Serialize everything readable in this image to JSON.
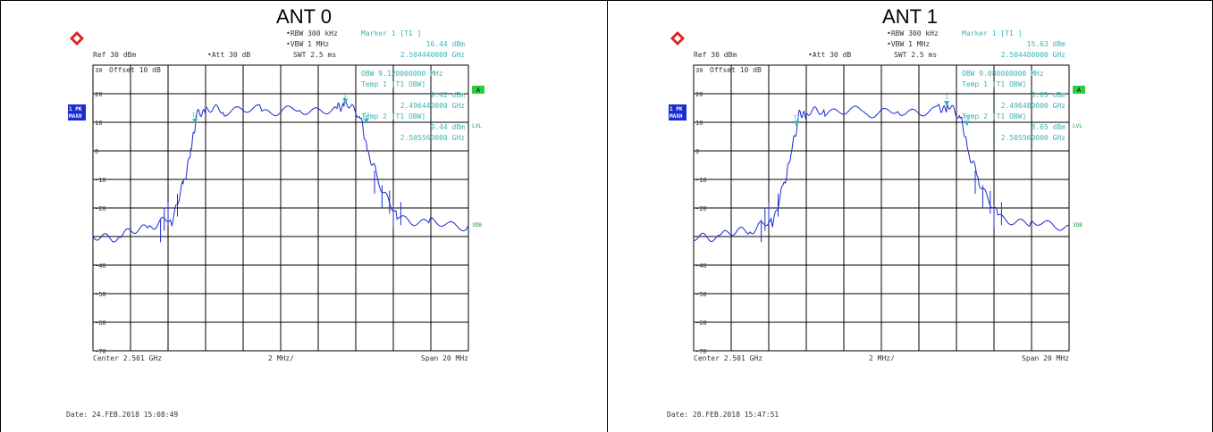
{
  "panels": [
    {
      "header": "ANT 0",
      "ref": "Ref  30 dBm",
      "att": "Att  30 dB",
      "rbw": "RBW 300 kHz",
      "vbw": "VBW 1 MHz",
      "swt": "SWT 2.5 ms",
      "marker_title": "Marker 1 [T1 ]",
      "marker_level": "16.44 dBm",
      "marker_freq": "2.504440000 GHz",
      "offset": "Offset  10 dB",
      "obw": "OBW  9.120000000 MHz",
      "temp1": "Temp 1  [T1 OBW]",
      "temp1_level": "9.42 dBm",
      "temp1_freq": "2.496440000 GHz",
      "temp2": "Temp 2  [T1 OBW]",
      "temp2_level": "9.44 dBm",
      "temp2_freq": "2.505560000 GHz",
      "trace_label_1": "1 PK",
      "trace_label_2": "MAXH",
      "badge_a": "A",
      "lvl": "LVL",
      "three_db": "3DB",
      "center": "Center 2.501 GHz",
      "div": "2 MHz/",
      "span": "Span 20 MHz",
      "date": "Date: 24.FEB.2018  15:08:49"
    },
    {
      "header": "ANT 1",
      "ref": "Ref  30 dBm",
      "att": "Att  30 dB",
      "rbw": "RBW 300 kHz",
      "vbw": "VBW 1 MHz",
      "swt": "SWT 2.5 ms",
      "marker_title": "Marker 1 [T1 ]",
      "marker_level": "15.63 dBm",
      "marker_freq": "2.504480000 GHz",
      "offset": "Offset  10 dB",
      "obw": "OBW  9.080000000 MHz",
      "temp1": "Temp 1  [T1 OBW]",
      "temp1_level": "8.63 dBm",
      "temp1_freq": "2.496480000 GHz",
      "temp2": "Temp 2  [T1 OBW]",
      "temp2_level": "8.65 dBm",
      "temp2_freq": "2.505560000 GHz",
      "trace_label_1": "1 PK",
      "trace_label_2": "MAXH",
      "badge_a": "A",
      "lvl": "LVL",
      "three_db": "3DB",
      "center": "Center 2.501 GHz",
      "div": "2 MHz/",
      "span": "Span 20 MHz",
      "date": "Date: 28.FEB.2018  15:47:51"
    }
  ],
  "chart_data": [
    {
      "type": "line",
      "x_unit": "GHz",
      "y_unit": "dBm",
      "xlim": [
        2.491,
        2.511
      ],
      "ylim": [
        -70,
        30
      ],
      "y_ticks": [
        30,
        20,
        10,
        0,
        -10,
        -20,
        -30,
        -40,
        -50,
        -60,
        -70
      ],
      "y_tick_labels": [
        "30",
        "20",
        "10",
        "0",
        "-10",
        "-20",
        "",
        "-40",
        "-50",
        "-60",
        "-70"
      ],
      "grid": true,
      "series": [
        {
          "x": [
            2.491,
            2.4925,
            2.494,
            2.4952,
            2.4958,
            2.4962,
            2.4965,
            2.497,
            2.498,
            2.5,
            2.502,
            2.504,
            2.5044,
            2.5052,
            2.5056,
            2.5062,
            2.5072,
            2.509,
            2.511
          ],
          "y": [
            -31,
            -30,
            -27,
            -24,
            -12,
            0,
            12,
            14,
            14,
            14,
            14.5,
            15,
            16.44,
            13,
            0,
            -10,
            -23,
            -25,
            -26
          ]
        }
      ],
      "markers": [
        {
          "label": "1",
          "x": 2.50444,
          "y": 16.44
        },
        {
          "label": "T1",
          "x": 2.49644,
          "y": 9.42
        },
        {
          "label": "T2",
          "x": 2.50556,
          "y": 9.44
        }
      ]
    },
    {
      "type": "line",
      "x_unit": "GHz",
      "y_unit": "dBm",
      "xlim": [
        2.491,
        2.511
      ],
      "ylim": [
        -70,
        30
      ],
      "y_ticks": [
        30,
        20,
        10,
        0,
        -10,
        -20,
        -30,
        -40,
        -50,
        -60,
        -70
      ],
      "y_tick_labels": [
        "30",
        "20",
        "10",
        "0",
        "-10",
        "-20",
        "",
        "-40",
        "-50",
        "-60",
        "-70"
      ],
      "grid": true,
      "series": [
        {
          "x": [
            2.491,
            2.4925,
            2.494,
            2.4952,
            2.4958,
            2.4962,
            2.4966,
            2.497,
            2.498,
            2.5,
            2.502,
            2.504,
            2.5045,
            2.5052,
            2.5056,
            2.5062,
            2.5072,
            2.509,
            2.511
          ],
          "y": [
            -31,
            -30,
            -28,
            -25,
            -12,
            0,
            12,
            13,
            13.5,
            13.5,
            14,
            14.5,
            15.63,
            12,
            0,
            -10,
            -23,
            -25,
            -26
          ]
        }
      ],
      "markers": [
        {
          "label": "1",
          "x": 2.50448,
          "y": 15.63
        },
        {
          "label": "T1",
          "x": 2.49648,
          "y": 8.63
        },
        {
          "label": "T2",
          "x": 2.50556,
          "y": 8.65
        }
      ]
    }
  ]
}
